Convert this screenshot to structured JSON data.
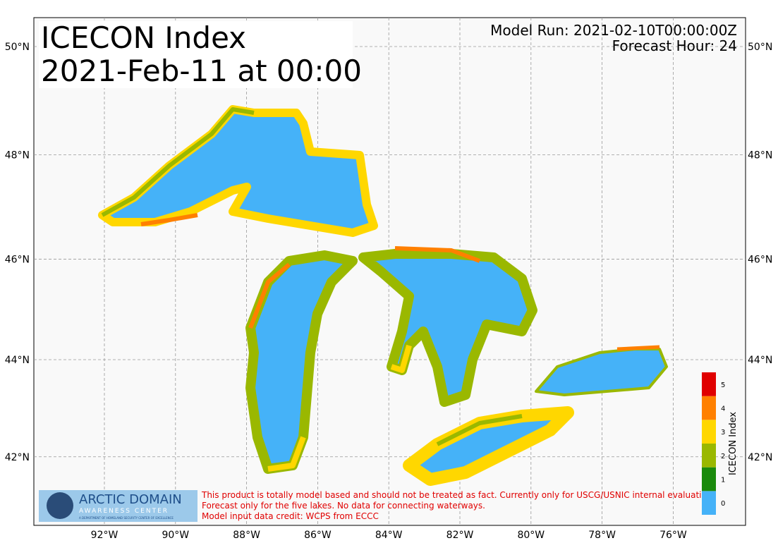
{
  "map": {
    "title": "ICECON Index",
    "subtitle": "2021-Feb-11 at 00:00",
    "model_run": "Model Run: 2021-02-10T00:00:00Z",
    "forecast_hour": "Forecast Hour: 24",
    "lon_ticks": [
      {
        "value": -92,
        "label": "92°W"
      },
      {
        "value": -90,
        "label": "90°W"
      },
      {
        "value": -88,
        "label": "88°W"
      },
      {
        "value": -86,
        "label": "86°W"
      },
      {
        "value": -84,
        "label": "84°W"
      },
      {
        "value": -82,
        "label": "82°W"
      },
      {
        "value": -80,
        "label": "80°W"
      },
      {
        "value": -78,
        "label": "78°W"
      },
      {
        "value": -76,
        "label": "76°W"
      }
    ],
    "lat_ticks": [
      {
        "value": 50,
        "label": "50°N"
      },
      {
        "value": 48,
        "label": "48°N"
      },
      {
        "value": 46,
        "label": "46°N"
      },
      {
        "value": 44,
        "label": "44°N"
      },
      {
        "value": 42,
        "label": "42°N"
      }
    ],
    "colorbar": {
      "label": "ICECON Index",
      "ticks": [
        0,
        1,
        2,
        3,
        4,
        5
      ],
      "colors": [
        "#45b2f8",
        "#1a8a0c",
        "#9ab800",
        "#ffd700",
        "#ff8000",
        "#e00000"
      ]
    },
    "logo": {
      "line1": "ARCTIC DOMAIN",
      "line2": "AWARENESS CENTER",
      "line3": "A DEPARTMENT OF HOMELAND SECURITY CENTER OF EXCELLENCE"
    },
    "disclaimer": [
      "This product is totally model based and should not be treated as fact. Currently only for USCG/USNIC internal evaluation.",
      "Forecast only for the five lakes. No data for connecting waterways.",
      "Model input data credit: WCPS from ECCC"
    ]
  }
}
